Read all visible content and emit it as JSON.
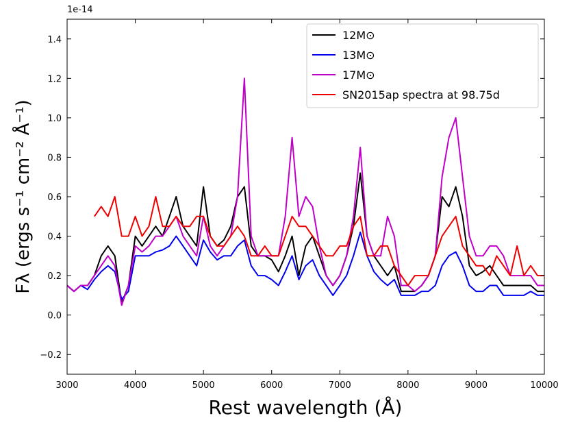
{
  "chart_data": {
    "type": "line",
    "y_offset_label": "1e-14",
    "xlabel": "Rest wavelength (Å)",
    "ylabel": "Fλ (ergs s⁻¹ cm⁻² Å⁻¹)",
    "xlim": [
      3000,
      10000
    ],
    "ylim": [
      -0.3,
      1.5
    ],
    "xticks": [
      3000,
      4000,
      5000,
      6000,
      7000,
      8000,
      9000,
      10000
    ],
    "yticks": [
      {
        "value": -0.2,
        "label": "−0.2"
      },
      {
        "value": 0,
        "label": "0.0"
      },
      0.2,
      0.4,
      0.6,
      0.8,
      {
        "value": 1.0,
        "label": "1.0"
      },
      1.2,
      1.4
    ],
    "legend": "upper right",
    "x": [
      3000,
      3100,
      3200,
      3300,
      3400,
      3500,
      3600,
      3700,
      3800,
      3900,
      4000,
      4100,
      4200,
      4300,
      4400,
      4500,
      4600,
      4700,
      4800,
      4900,
      5000,
      5100,
      5200,
      5300,
      5400,
      5500,
      5600,
      5700,
      5800,
      5900,
      6000,
      6100,
      6200,
      6300,
      6400,
      6500,
      6600,
      6700,
      6800,
      6900,
      7000,
      7100,
      7200,
      7300,
      7400,
      7500,
      7600,
      7700,
      7800,
      7900,
      8000,
      8100,
      8200,
      8300,
      8400,
      8500,
      8600,
      8700,
      8800,
      8900,
      9000,
      9100,
      9200,
      9300,
      9400,
      9500,
      9600,
      9700,
      9800,
      9900,
      10000
    ],
    "series": [
      {
        "name": "12M⊙",
        "color": "#000000",
        "values": [
          0.15,
          0.12,
          0.15,
          0.15,
          0.2,
          0.3,
          0.35,
          0.3,
          0.06,
          0.15,
          0.4,
          0.35,
          0.4,
          0.45,
          0.4,
          0.5,
          0.6,
          0.45,
          0.4,
          0.35,
          0.65,
          0.4,
          0.35,
          0.38,
          0.45,
          0.6,
          0.65,
          0.35,
          0.3,
          0.3,
          0.28,
          0.22,
          0.3,
          0.4,
          0.2,
          0.35,
          0.4,
          0.3,
          0.2,
          0.15,
          0.2,
          0.3,
          0.45,
          0.72,
          0.4,
          0.3,
          0.25,
          0.2,
          0.25,
          0.12,
          0.12,
          0.12,
          0.15,
          0.2,
          0.3,
          0.6,
          0.55,
          0.65,
          0.5,
          0.25,
          0.2,
          0.22,
          0.25,
          0.2,
          0.15,
          0.15,
          0.15,
          0.15,
          0.15,
          0.12,
          0.12
        ]
      },
      {
        "name": "13M⊙",
        "color": "#0000ee",
        "values": [
          0.15,
          0.12,
          0.15,
          0.13,
          0.18,
          0.22,
          0.25,
          0.22,
          0.08,
          0.12,
          0.3,
          0.3,
          0.3,
          0.32,
          0.33,
          0.35,
          0.4,
          0.35,
          0.3,
          0.25,
          0.38,
          0.32,
          0.28,
          0.3,
          0.3,
          0.35,
          0.38,
          0.25,
          0.2,
          0.2,
          0.18,
          0.15,
          0.22,
          0.3,
          0.18,
          0.25,
          0.28,
          0.2,
          0.15,
          0.1,
          0.15,
          0.2,
          0.3,
          0.42,
          0.3,
          0.22,
          0.18,
          0.15,
          0.18,
          0.1,
          0.1,
          0.1,
          0.12,
          0.12,
          0.15,
          0.25,
          0.3,
          0.32,
          0.25,
          0.15,
          0.12,
          0.12,
          0.15,
          0.15,
          0.1,
          0.1,
          0.1,
          0.1,
          0.12,
          0.1,
          0.1
        ]
      },
      {
        "name": "17M⊙",
        "color": "#c000c8",
        "values": [
          0.15,
          0.12,
          0.15,
          0.15,
          0.2,
          0.25,
          0.3,
          0.25,
          0.05,
          0.15,
          0.35,
          0.32,
          0.35,
          0.4,
          0.4,
          0.45,
          0.5,
          0.4,
          0.35,
          0.3,
          0.5,
          0.35,
          0.3,
          0.35,
          0.4,
          0.6,
          1.2,
          0.4,
          0.3,
          0.3,
          0.3,
          0.3,
          0.5,
          0.9,
          0.5,
          0.6,
          0.55,
          0.35,
          0.2,
          0.15,
          0.2,
          0.3,
          0.5,
          0.85,
          0.4,
          0.3,
          0.3,
          0.5,
          0.4,
          0.15,
          0.15,
          0.12,
          0.15,
          0.2,
          0.3,
          0.7,
          0.9,
          1.0,
          0.7,
          0.4,
          0.3,
          0.3,
          0.35,
          0.35,
          0.3,
          0.2,
          0.2,
          0.2,
          0.2,
          0.15,
          0.15
        ]
      },
      {
        "name": "SN2015ap spectra at 98.75d",
        "color": "#ee0000",
        "values": [
          null,
          null,
          null,
          null,
          0.5,
          0.55,
          0.5,
          0.6,
          0.4,
          0.4,
          0.5,
          0.4,
          0.45,
          0.6,
          0.45,
          0.45,
          0.5,
          0.45,
          0.45,
          0.5,
          0.5,
          0.4,
          0.35,
          0.35,
          0.4,
          0.45,
          0.4,
          0.3,
          0.3,
          0.35,
          0.3,
          0.3,
          0.4,
          0.5,
          0.45,
          0.45,
          0.4,
          0.35,
          0.3,
          0.3,
          0.35,
          0.35,
          0.45,
          0.5,
          0.3,
          0.3,
          0.35,
          0.35,
          0.25,
          0.2,
          0.15,
          0.2,
          0.2,
          0.2,
          0.3,
          0.4,
          0.45,
          0.5,
          0.35,
          0.3,
          0.25,
          0.25,
          0.2,
          0.3,
          0.25,
          0.2,
          0.35,
          0.2,
          0.25,
          0.2,
          0.2
        ]
      }
    ]
  }
}
